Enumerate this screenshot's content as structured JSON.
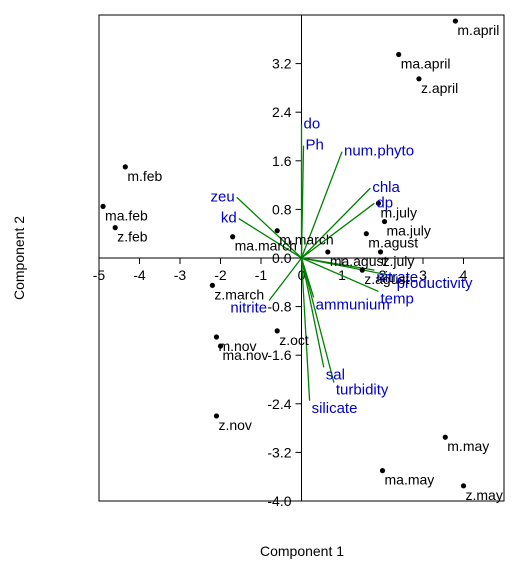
{
  "chart_data": {
    "type": "scatter",
    "title": "",
    "xlabel": "Component 1",
    "ylabel": "Component 2",
    "xlim": [
      -5,
      5
    ],
    "ylim": [
      -4,
      4
    ],
    "grid": false,
    "x_ticks": [
      -5,
      -4,
      -3,
      -2,
      -1,
      0,
      1,
      2,
      3,
      4
    ],
    "x_tick_labels": [
      "-5",
      "-4",
      "-3",
      "-2",
      "-1",
      "0",
      "1",
      "2",
      "3",
      "4"
    ],
    "y_ticks": [
      -4,
      -3.2,
      -2.4,
      -1.6,
      -0.8,
      0,
      0.8,
      1.6,
      2.4,
      3.2
    ],
    "y_tick_labels": [
      "-4.0",
      "-3.2",
      "-2.4",
      "-1.6",
      "-0.8",
      "0.0",
      "0.8",
      "1.6",
      "2.4",
      "3.2"
    ],
    "marker_color": "#000000",
    "vector_color": "#008000",
    "vector_label_color": "#0000cc",
    "observations": [
      {
        "label": "m.april",
        "x": 3.8,
        "y": 3.9
      },
      {
        "label": "ma.april",
        "x": 2.4,
        "y": 3.35
      },
      {
        "label": "z.april",
        "x": 2.9,
        "y": 2.95
      },
      {
        "label": "m.feb",
        "x": -4.35,
        "y": 1.5
      },
      {
        "label": "ma.feb",
        "x": -4.9,
        "y": 0.85
      },
      {
        "label": "z.feb",
        "x": -4.6,
        "y": 0.5
      },
      {
        "label": "m.july",
        "x": 1.9,
        "y": 0.9
      },
      {
        "label": "ma.july",
        "x": 2.05,
        "y": 0.6
      },
      {
        "label": "m.agust",
        "x": 1.6,
        "y": 0.4
      },
      {
        "label": "ma.march",
        "x": -1.7,
        "y": 0.35
      },
      {
        "label": "m.march",
        "x": -0.6,
        "y": 0.45
      },
      {
        "label": "ma.agust",
        "x": 0.65,
        "y": 0.1
      },
      {
        "label": "z.agust",
        "x": 1.5,
        "y": -0.2
      },
      {
        "label": "z.july",
        "x": 1.95,
        "y": 0.1
      },
      {
        "label": "z.march",
        "x": -2.2,
        "y": -0.45
      },
      {
        "label": "z.oct",
        "x": -0.6,
        "y": -1.2
      },
      {
        "label": "m.nov",
        "x": -2.1,
        "y": -1.3
      },
      {
        "label": "ma.nov",
        "x": -2.0,
        "y": -1.45
      },
      {
        "label": "z.nov",
        "x": -2.1,
        "y": -2.6
      },
      {
        "label": "m.may",
        "x": 3.55,
        "y": -2.95
      },
      {
        "label": "ma.may",
        "x": 2.0,
        "y": -3.5
      },
      {
        "label": "z.may",
        "x": 4.0,
        "y": -3.75
      }
    ],
    "vectors": [
      {
        "label": "do",
        "x": 0.0,
        "y": 2.2
      },
      {
        "label": "Ph",
        "x": 0.05,
        "y": 1.85
      },
      {
        "label": "num.phyto",
        "x": 1.0,
        "y": 1.75
      },
      {
        "label": "chla",
        "x": 1.7,
        "y": 1.15
      },
      {
        "label": "dp",
        "x": 1.8,
        "y": 0.9
      },
      {
        "label": "zeu",
        "x": -1.6,
        "y": 1.0
      },
      {
        "label": "kd",
        "x": -1.55,
        "y": 0.65
      },
      {
        "label": "nitrite",
        "x": -0.8,
        "y": -0.7
      },
      {
        "label": "ammunium",
        "x": 0.3,
        "y": -0.65
      },
      {
        "label": "nitrate",
        "x": 1.8,
        "y": -0.2
      },
      {
        "label": "productivity",
        "x": 2.3,
        "y": -0.3
      },
      {
        "label": "temp",
        "x": 1.9,
        "y": -0.55
      },
      {
        "label": "sal",
        "x": 0.55,
        "y": -1.8
      },
      {
        "label": "turbidity",
        "x": 0.8,
        "y": -2.05
      },
      {
        "label": "silicate",
        "x": 0.2,
        "y": -2.35
      }
    ]
  }
}
